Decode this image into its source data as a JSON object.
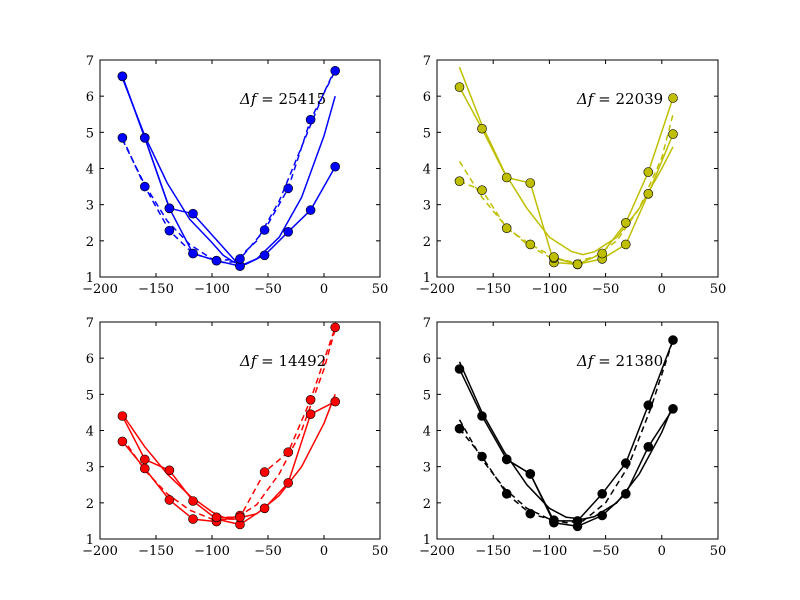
{
  "chart_data": [
    {
      "type": "line",
      "color": "#0000ff",
      "annotation": {
        "label": "Δf = ",
        "value": "25415"
      },
      "xlim": [
        -200,
        50
      ],
      "ylim": [
        1,
        7
      ],
      "xticks": [
        -200,
        -150,
        -100,
        -50,
        0,
        50
      ],
      "yticks": [
        1,
        2,
        3,
        4,
        5,
        6,
        7
      ],
      "series": [
        {
          "style": "solid",
          "markers": true,
          "x": [
            -180,
            -160,
            -138,
            -117,
            -75,
            -53,
            -32,
            -12,
            10
          ],
          "y": [
            6.55,
            4.85,
            2.9,
            2.75,
            1.3,
            1.6,
            2.25,
            2.85,
            4.05
          ]
        },
        {
          "style": "solid",
          "markers": true,
          "x": [
            -180,
            -160,
            -138,
            -117,
            -96,
            -75
          ],
          "y": [
            6.55,
            4.85,
            2.9,
            1.65,
            1.45,
            1.3
          ]
        },
        {
          "style": "solid",
          "markers": false,
          "x": [
            -180,
            -160,
            -140,
            -120,
            -100,
            -90,
            -80,
            -70,
            -60,
            -40,
            -20,
            0,
            10
          ],
          "y": [
            6.5,
            4.9,
            3.6,
            2.6,
            1.95,
            1.6,
            1.4,
            1.35,
            1.5,
            2.1,
            3.2,
            4.9,
            6.0
          ]
        },
        {
          "style": "dashed",
          "markers": true,
          "x": [
            -180,
            -160,
            -138,
            -117,
            -96,
            -75,
            -53,
            -32,
            -12,
            10
          ],
          "y": [
            4.85,
            3.5,
            2.28,
            1.65,
            1.45,
            1.5,
            2.3,
            3.45,
            5.35,
            6.7
          ]
        },
        {
          "style": "dashed",
          "markers": false,
          "x": [
            -180,
            -160,
            -140,
            -120,
            -100,
            -90,
            -80,
            -60,
            -40,
            -20,
            0,
            10
          ],
          "y": [
            4.8,
            3.55,
            2.55,
            1.9,
            1.5,
            1.4,
            1.42,
            2.0,
            3.1,
            4.6,
            6.1,
            6.75
          ]
        }
      ]
    },
    {
      "type": "line",
      "color": "#bfbf00",
      "annotation": {
        "label": "Δf = ",
        "value": "22039"
      },
      "xlim": [
        -200,
        50
      ],
      "ylim": [
        1,
        7
      ],
      "xticks": [
        -200,
        -150,
        -100,
        -50,
        0,
        50
      ],
      "yticks": [
        1,
        2,
        3,
        4,
        5,
        6,
        7
      ],
      "series": [
        {
          "style": "solid",
          "markers": true,
          "x": [
            -180,
            -160,
            -138,
            -117,
            -96,
            -75,
            -53,
            -32,
            -12,
            10
          ],
          "y": [
            6.25,
            5.1,
            3.75,
            3.6,
            1.4,
            1.35,
            1.5,
            1.9,
            3.3,
            4.95
          ]
        },
        {
          "style": "solid",
          "markers": false,
          "x": [
            -180,
            -160,
            -140,
            -120,
            -100,
            -80,
            -70,
            -60,
            -40,
            -20,
            0,
            10
          ],
          "y": [
            6.8,
            5.2,
            3.9,
            2.9,
            2.1,
            1.7,
            1.62,
            1.7,
            2.1,
            2.9,
            4.0,
            4.6
          ]
        },
        {
          "style": "solid",
          "markers": true,
          "x": [
            -96,
            -75,
            -53,
            -32,
            -12,
            10
          ],
          "y": [
            1.52,
            1.35,
            1.65,
            2.5,
            3.9,
            5.95
          ]
        },
        {
          "style": "dashed",
          "markers": true,
          "x": [
            -180,
            -160,
            -138,
            -117,
            -96,
            -75
          ],
          "y": [
            3.65,
            3.4,
            2.35,
            1.9,
            1.55,
            1.35
          ]
        },
        {
          "style": "dashed",
          "markers": false,
          "x": [
            -180,
            -160,
            -140,
            -120,
            -100,
            -80,
            -60,
            -40,
            -20,
            0,
            10
          ],
          "y": [
            4.2,
            3.2,
            2.45,
            1.9,
            1.55,
            1.42,
            1.55,
            2.0,
            2.9,
            4.3,
            5.5
          ]
        }
      ]
    },
    {
      "type": "line",
      "color": "#ff0000",
      "annotation": {
        "label": "Δf = ",
        "value": "14492"
      },
      "xlim": [
        -200,
        50
      ],
      "ylim": [
        1,
        7
      ],
      "xticks": [
        -200,
        -150,
        -100,
        -50,
        0,
        50
      ],
      "yticks": [
        1,
        2,
        3,
        4,
        5,
        6,
        7
      ],
      "series": [
        {
          "style": "solid",
          "markers": true,
          "x": [
            -180,
            -160,
            -138,
            -117,
            -96,
            -75,
            -53,
            -32,
            -12,
            10
          ],
          "y": [
            4.4,
            3.2,
            2.9,
            2.05,
            1.55,
            1.4,
            1.85,
            2.55,
            4.45,
            4.8
          ]
        },
        {
          "style": "solid",
          "markers": true,
          "x": [
            -180,
            -160,
            -138,
            -117,
            -96,
            -75
          ],
          "y": [
            3.7,
            2.95,
            2.08,
            1.55,
            1.48,
            1.65
          ]
        },
        {
          "style": "solid",
          "markers": false,
          "x": [
            -180,
            -160,
            -140,
            -120,
            -100,
            -90,
            -80,
            -60,
            -40,
            -20,
            0,
            10
          ],
          "y": [
            4.45,
            3.55,
            2.8,
            2.2,
            1.75,
            1.6,
            1.55,
            1.7,
            2.2,
            3.0,
            4.2,
            5.0
          ]
        },
        {
          "style": "dashed",
          "markers": true,
          "x": [
            -96,
            -75,
            -53,
            -32,
            -12,
            10
          ],
          "y": [
            1.6,
            1.6,
            2.85,
            3.4,
            4.85,
            6.85
          ]
        },
        {
          "style": "dashed",
          "markers": false,
          "x": [
            -180,
            -160,
            -140,
            -120,
            -100,
            -80,
            -60,
            -40,
            -20,
            0,
            10
          ],
          "y": [
            3.8,
            2.9,
            2.25,
            1.8,
            1.55,
            1.55,
            1.95,
            2.8,
            4.0,
            5.7,
            6.8
          ]
        }
      ]
    },
    {
      "type": "line",
      "color": "#000000",
      "annotation": {
        "label": "Δf = ",
        "value": "21380"
      },
      "xlim": [
        -200,
        50
      ],
      "ylim": [
        1,
        7
      ],
      "xticks": [
        -200,
        -150,
        -100,
        -50,
        0,
        50
      ],
      "yticks": [
        1,
        2,
        3,
        4,
        5,
        6,
        7
      ],
      "series": [
        {
          "style": "solid",
          "markers": true,
          "x": [
            -180,
            -160,
            -138,
            -117,
            -96,
            -75,
            -53,
            -32,
            -12,
            10
          ],
          "y": [
            5.7,
            4.4,
            3.2,
            2.8,
            1.45,
            1.35,
            1.65,
            2.25,
            3.55,
            4.6
          ]
        },
        {
          "style": "solid",
          "markers": false,
          "x": [
            -180,
            -160,
            -140,
            -120,
            -100,
            -85,
            -70,
            -60,
            -40,
            -20,
            0,
            10
          ],
          "y": [
            5.9,
            4.5,
            3.4,
            2.5,
            1.85,
            1.6,
            1.55,
            1.62,
            2.0,
            2.8,
            3.95,
            4.7
          ]
        },
        {
          "style": "solid",
          "markers": true,
          "x": [
            -138,
            -117,
            -96,
            -75,
            -53,
            -32,
            -12,
            10
          ],
          "y": [
            3.2,
            2.8,
            1.5,
            1.5,
            2.25,
            3.1,
            4.7,
            6.5
          ]
        },
        {
          "style": "dashed",
          "markers": true,
          "x": [
            -180,
            -160,
            -138,
            -117,
            -96
          ],
          "y": [
            4.05,
            3.28,
            2.25,
            1.7,
            1.52
          ]
        },
        {
          "style": "dashed",
          "markers": false,
          "x": [
            -180,
            -160,
            -140,
            -120,
            -100,
            -85,
            -70,
            -50,
            -30,
            -10,
            10
          ],
          "y": [
            4.3,
            3.2,
            2.4,
            1.85,
            1.55,
            1.45,
            1.5,
            2.0,
            3.0,
            4.6,
            6.5
          ]
        }
      ]
    }
  ]
}
